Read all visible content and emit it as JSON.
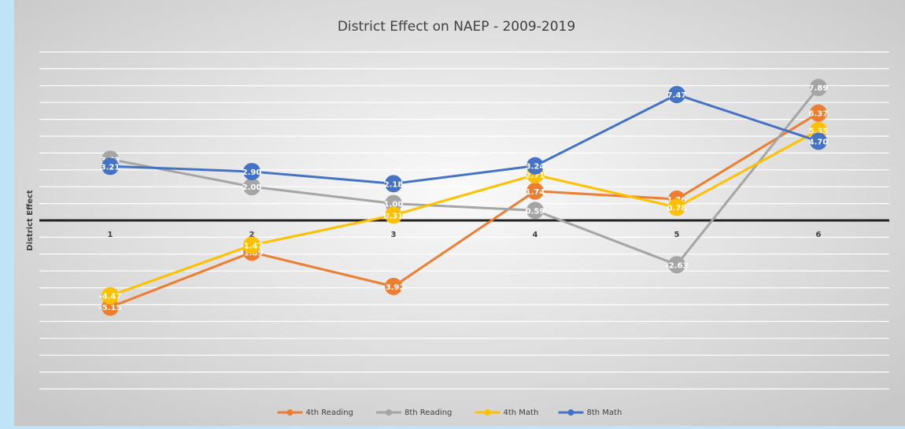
{
  "chart_data": {
    "type": "line",
    "title": "District Effect on NAEP - 2009-2019",
    "y_label": "District Effect",
    "categories": [
      "1",
      "2",
      "3",
      "4",
      "5",
      "6"
    ],
    "series": [
      {
        "name": "4th Reading",
        "color": "#ed7d31",
        "values": [
          -5.15,
          -1.89,
          -3.92,
          1.74,
          1.26,
          6.37
        ],
        "value_labels": [
          "-5.15",
          "-1.89",
          "-3.92",
          "1.74",
          "1.26",
          "6.37"
        ]
      },
      {
        "name": "8th Reading",
        "color": "#a5a5a5",
        "values": [
          3.63,
          2.0,
          1.0,
          0.59,
          -2.63,
          7.89
        ],
        "value_labels": [
          "3.63",
          "2.00",
          "1.00",
          "0.59",
          "-2.63",
          "7.89"
        ]
      },
      {
        "name": "4th Math",
        "color": "#ffc000",
        "values": [
          -4.47,
          -1.47,
          0.31,
          2.71,
          0.78,
          5.35
        ],
        "value_labels": [
          "-4.47",
          "-1.47",
          "0.31",
          "2.71",
          "0.78",
          "5.35"
        ]
      },
      {
        "name": "8th Math",
        "color": "#4472c4",
        "values": [
          3.21,
          2.9,
          2.18,
          3.24,
          7.47,
          4.7
        ],
        "value_labels": [
          "3.21",
          "2.90",
          "2.18",
          "3.24",
          "7.47",
          "4.70"
        ]
      }
    ],
    "ylim": [
      -10,
      10
    ],
    "yticks": [
      -10,
      -9,
      -8,
      -7,
      -6,
      -5,
      -4,
      -3,
      -2,
      -1,
      0,
      1,
      2,
      3,
      4,
      5,
      6,
      7,
      8,
      9,
      10
    ],
    "grid": true,
    "legend": "bottom"
  }
}
